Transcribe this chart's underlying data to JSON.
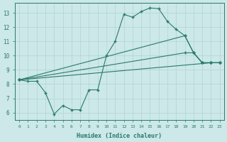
{
  "xlabel": "Humidex (Indice chaleur)",
  "xlim": [
    -0.5,
    23.5
  ],
  "ylim": [
    5.5,
    13.7
  ],
  "xticks": [
    0,
    1,
    2,
    3,
    4,
    5,
    6,
    7,
    8,
    9,
    10,
    11,
    12,
    13,
    14,
    15,
    16,
    17,
    18,
    19,
    20,
    21,
    22,
    23
  ],
  "yticks": [
    6,
    7,
    8,
    9,
    10,
    11,
    12,
    13
  ],
  "background_color": "#cce8e8",
  "grid_color": "#b0d4d4",
  "line_color": "#2a7a6a",
  "line1_x": [
    0,
    1,
    2,
    3,
    4,
    5,
    6,
    7,
    8,
    9,
    10,
    11,
    12,
    13,
    14,
    15,
    16,
    17,
    18,
    19,
    20,
    21,
    22,
    23
  ],
  "line1_y": [
    8.3,
    8.2,
    8.2,
    7.4,
    5.9,
    6.5,
    6.2,
    6.2,
    7.6,
    7.6,
    10.0,
    11.0,
    12.9,
    12.7,
    13.1,
    13.35,
    13.3,
    12.4,
    11.85,
    11.4,
    10.2,
    9.5,
    9.5,
    9.5
  ],
  "line2_x": [
    0,
    22,
    23
  ],
  "line2_y": [
    8.3,
    9.5,
    9.5
  ],
  "line3_x": [
    0,
    19,
    20,
    21,
    22,
    23
  ],
  "line3_y": [
    8.3,
    10.2,
    10.2,
    9.5,
    9.5,
    9.5
  ],
  "line4_x": [
    0,
    19,
    20,
    21,
    22,
    23
  ],
  "line4_y": [
    8.3,
    11.4,
    10.2,
    9.5,
    9.5,
    9.5
  ]
}
